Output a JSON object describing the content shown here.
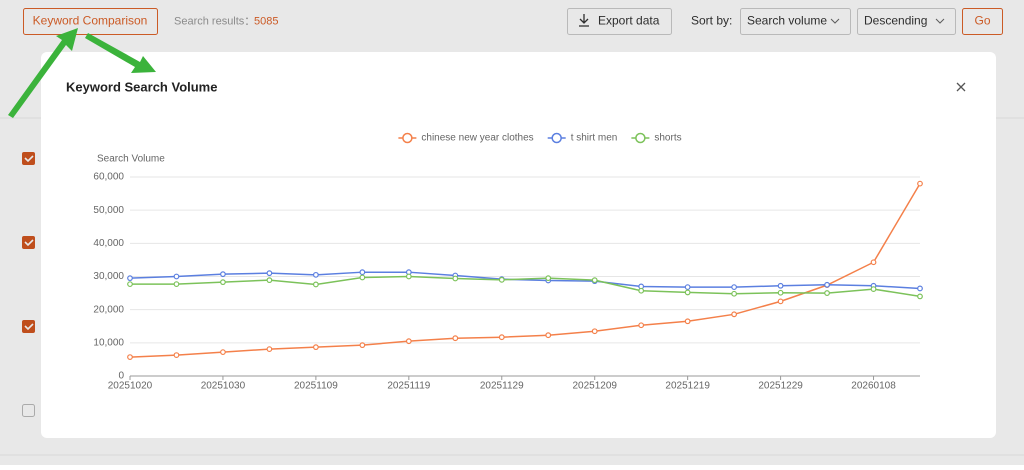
{
  "toolbar": {
    "compare_button": "Keyword Comparison",
    "results_label": "Search results：",
    "results_count": "5085",
    "export_button": "Export data",
    "sort_label": "Sort by:",
    "sort_field": "Search volume",
    "sort_order": "Descending",
    "go_button": "Go"
  },
  "modal": {
    "title": "Keyword Search Volume"
  },
  "chart_data": {
    "type": "line",
    "y_label": "Search Volume",
    "legend": "top",
    "categories": [
      "20251020",
      null,
      "20251030",
      null,
      "20251109",
      null,
      "20251119",
      null,
      "20251129",
      null,
      "20251209",
      null,
      "20251219",
      null,
      "20251229",
      null,
      "20260108",
      null
    ],
    "series": [
      {
        "name": "chinese new year clothes",
        "color": "#f4804a",
        "values": [
          5700,
          6300,
          7200,
          8100,
          8700,
          9300,
          10500,
          11400,
          11700,
          12300,
          13500,
          15300,
          16500,
          18600,
          22500,
          27400,
          34300,
          58000
        ]
      },
      {
        "name": "t shirt men",
        "color": "#5b7fe0",
        "values": [
          29500,
          30000,
          30700,
          31000,
          30500,
          31300,
          31300,
          30300,
          29200,
          28800,
          28600,
          27000,
          26800,
          26800,
          27200,
          27500,
          27200,
          26400
        ]
      },
      {
        "name": "shorts",
        "color": "#7cc25a",
        "values": [
          27700,
          27700,
          28300,
          28900,
          27600,
          29700,
          30000,
          29400,
          29000,
          29500,
          28900,
          25700,
          25200,
          24800,
          25100,
          25000,
          26200,
          24000
        ]
      }
    ],
    "ylim": [
      0,
      60000
    ],
    "yticks": [
      0,
      {
        "value": 10000,
        "label": "10,000"
      },
      {
        "value": 20000,
        "label": "20,000"
      },
      {
        "value": 30000,
        "label": "30,000"
      },
      {
        "value": 40000,
        "label": "40,000"
      },
      {
        "value": 50000,
        "label": "50,000"
      },
      {
        "value": 60000,
        "label": "60,000"
      }
    ],
    "grid": true
  }
}
